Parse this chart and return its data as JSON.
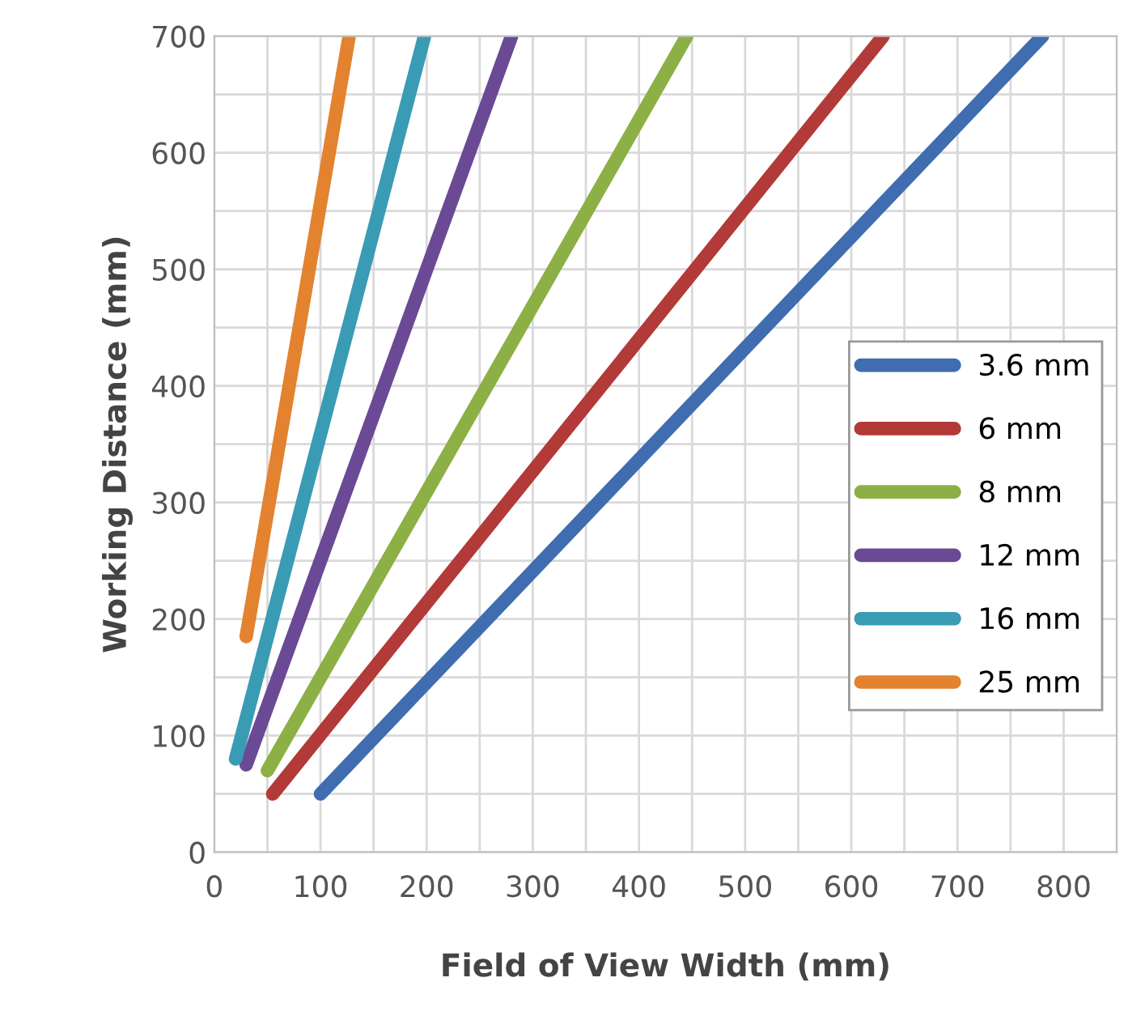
{
  "chart_data": {
    "type": "line",
    "xlabel": "Field of View Width (mm)",
    "ylabel": "Working Distance (mm)",
    "xlim": [
      0,
      850
    ],
    "ylim": [
      0,
      700
    ],
    "xticks": [
      0,
      {
        "value": 50,
        "label": null
      },
      100,
      {
        "value": 150,
        "label": null
      },
      200,
      {
        "value": 250,
        "label": null
      },
      300,
      {
        "value": 350,
        "label": null
      },
      400,
      {
        "value": 450,
        "label": null
      },
      500,
      {
        "value": 550,
        "label": null
      },
      600,
      {
        "value": 650,
        "label": null
      },
      700,
      {
        "value": 750,
        "label": null
      },
      800
    ],
    "yticks": [
      0,
      {
        "value": 50,
        "label": null
      },
      100,
      {
        "value": 150,
        "label": null
      },
      200,
      {
        "value": 250,
        "label": null
      },
      300,
      {
        "value": 350,
        "label": null
      },
      400,
      {
        "value": 450,
        "label": null
      },
      500,
      {
        "value": 550,
        "label": null
      },
      600,
      {
        "value": 650,
        "label": null
      },
      700
    ],
    "grid": true,
    "legend": "right",
    "marker": "none",
    "line_style": "solid",
    "series": [
      {
        "name": "3.6 mm",
        "color": "#3f6db0",
        "x": [
          100,
          780
        ],
        "values": [
          50,
          700
        ]
      },
      {
        "name": "6 mm",
        "color": "#b23a38",
        "x": [
          55,
          630
        ],
        "values": [
          50,
          700
        ]
      },
      {
        "name": "8 mm",
        "color": "#8cb045",
        "x": [
          50,
          445
        ],
        "values": [
          70,
          700
        ]
      },
      {
        "name": "12 mm",
        "color": "#6a4a94",
        "x": [
          30,
          280
        ],
        "values": [
          75,
          700
        ]
      },
      {
        "name": "16 mm",
        "color": "#3a9bb5",
        "x": [
          20,
          198
        ],
        "values": [
          80,
          700
        ]
      },
      {
        "name": "25 mm",
        "color": "#e3822f",
        "x": [
          30,
          127
        ],
        "values": [
          185,
          700
        ]
      }
    ]
  }
}
